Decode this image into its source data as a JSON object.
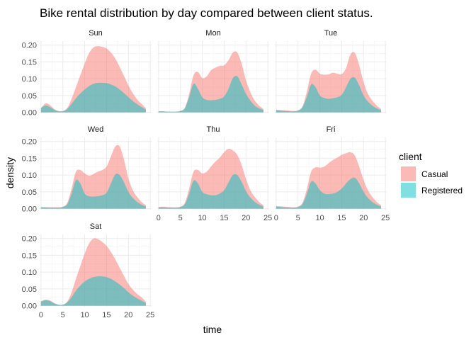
{
  "chart_data": {
    "type": "area",
    "title": "Bike rental distribution by day compared between client status.",
    "xlabel": "time",
    "ylabel": "density",
    "xlim": [
      0,
      24
    ],
    "ylim": [
      0,
      0.21
    ],
    "x_ticks": [
      "0",
      "5",
      "10",
      "15",
      "20",
      "25"
    ],
    "y_ticks": [
      "0.00",
      "0.05",
      "0.10",
      "0.15",
      "0.20"
    ],
    "legend": {
      "title": "client",
      "placement": "right",
      "entries": [
        {
          "name": "Casual",
          "color": "#F8766D"
        },
        {
          "name": "Registered",
          "color": "#00BFC4"
        }
      ]
    },
    "x": [
      0,
      1,
      2,
      3,
      4,
      5,
      6,
      7,
      8,
      9,
      10,
      11,
      12,
      13,
      14,
      15,
      16,
      17,
      18,
      19,
      20,
      21,
      22,
      23,
      24
    ],
    "panels": [
      {
        "label": "Sun",
        "series": [
          {
            "name": "Casual",
            "values": [
              0.013,
              0.026,
              0.022,
              0.01,
              0.004,
              0.004,
              0.013,
              0.04,
              0.075,
              0.11,
              0.145,
              0.176,
              0.193,
              0.197,
              0.195,
              0.19,
              0.178,
              0.16,
              0.135,
              0.108,
              0.08,
              0.057,
              0.038,
              0.025,
              0.012
            ]
          },
          {
            "name": "Registered",
            "values": [
              0.013,
              0.02,
              0.016,
              0.008,
              0.003,
              0.003,
              0.01,
              0.025,
              0.042,
              0.056,
              0.068,
              0.078,
              0.085,
              0.088,
              0.088,
              0.087,
              0.083,
              0.077,
              0.068,
              0.057,
              0.045,
              0.034,
              0.024,
              0.016,
              0.008
            ]
          }
        ]
      },
      {
        "label": "Mon",
        "series": [
          {
            "name": "Casual",
            "values": [
              0.003,
              0.003,
              0.002,
              0.002,
              0.002,
              0.004,
              0.013,
              0.055,
              0.11,
              0.12,
              0.102,
              0.107,
              0.125,
              0.133,
              0.138,
              0.14,
              0.155,
              0.178,
              0.178,
              0.145,
              0.095,
              0.06,
              0.035,
              0.02,
              0.01
            ]
          },
          {
            "name": "Registered",
            "values": [
              0.003,
              0.003,
              0.002,
              0.002,
              0.002,
              0.004,
              0.012,
              0.045,
              0.085,
              0.07,
              0.045,
              0.037,
              0.036,
              0.037,
              0.04,
              0.047,
              0.07,
              0.102,
              0.107,
              0.083,
              0.055,
              0.035,
              0.02,
              0.012,
              0.007
            ]
          }
        ]
      },
      {
        "label": "Tue",
        "series": [
          {
            "name": "Casual",
            "values": [
              0.008,
              0.007,
              0.006,
              0.005,
              0.004,
              0.006,
              0.017,
              0.06,
              0.115,
              0.127,
              0.115,
              0.112,
              0.113,
              0.118,
              0.115,
              0.114,
              0.132,
              0.172,
              0.177,
              0.14,
              0.09,
              0.055,
              0.035,
              0.02,
              0.01
            ]
          },
          {
            "name": "Registered",
            "values": [
              0.006,
              0.005,
              0.004,
              0.003,
              0.003,
              0.005,
              0.015,
              0.045,
              0.083,
              0.075,
              0.05,
              0.043,
              0.04,
              0.042,
              0.045,
              0.052,
              0.075,
              0.1,
              0.103,
              0.08,
              0.05,
              0.032,
              0.02,
              0.012,
              0.006
            ]
          }
        ]
      },
      {
        "label": "Wed",
        "series": [
          {
            "name": "Casual",
            "values": [
              0.005,
              0.004,
              0.004,
              0.004,
              0.004,
              0.006,
              0.017,
              0.06,
              0.11,
              0.115,
              0.105,
              0.098,
              0.103,
              0.11,
              0.115,
              0.125,
              0.155,
              0.185,
              0.185,
              0.145,
              0.09,
              0.055,
              0.035,
              0.02,
              0.01
            ]
          },
          {
            "name": "Registered",
            "values": [
              0.004,
              0.004,
              0.003,
              0.003,
              0.003,
              0.005,
              0.013,
              0.045,
              0.085,
              0.075,
              0.045,
              0.037,
              0.036,
              0.037,
              0.04,
              0.047,
              0.075,
              0.102,
              0.1,
              0.078,
              0.05,
              0.032,
              0.02,
              0.012,
              0.006
            ]
          }
        ]
      },
      {
        "label": "Thu",
        "series": [
          {
            "name": "Casual",
            "values": [
              0.005,
              0.006,
              0.005,
              0.004,
              0.004,
              0.006,
              0.017,
              0.06,
              0.11,
              0.115,
              0.105,
              0.11,
              0.125,
              0.14,
              0.152,
              0.168,
              0.178,
              0.173,
              0.16,
              0.13,
              0.088,
              0.055,
              0.035,
              0.02,
              0.01
            ]
          },
          {
            "name": "Registered",
            "values": [
              0.004,
              0.004,
              0.003,
              0.003,
              0.003,
              0.005,
              0.013,
              0.045,
              0.083,
              0.075,
              0.05,
              0.043,
              0.04,
              0.04,
              0.045,
              0.055,
              0.078,
              0.1,
              0.1,
              0.08,
              0.052,
              0.033,
              0.02,
              0.012,
              0.006
            ]
          }
        ]
      },
      {
        "label": "Fri",
        "series": [
          {
            "name": "Casual",
            "values": [
              0.008,
              0.007,
              0.006,
              0.005,
              0.004,
              0.006,
              0.017,
              0.057,
              0.11,
              0.123,
              0.122,
              0.125,
              0.135,
              0.145,
              0.152,
              0.16,
              0.165,
              0.168,
              0.158,
              0.125,
              0.085,
              0.055,
              0.035,
              0.02,
              0.01
            ]
          },
          {
            "name": "Registered",
            "values": [
              0.006,
              0.005,
              0.004,
              0.003,
              0.003,
              0.005,
              0.013,
              0.043,
              0.08,
              0.075,
              0.055,
              0.045,
              0.043,
              0.045,
              0.05,
              0.06,
              0.075,
              0.088,
              0.092,
              0.075,
              0.05,
              0.032,
              0.02,
              0.012,
              0.006
            ]
          }
        ]
      },
      {
        "label": "Sat",
        "series": [
          {
            "name": "Casual",
            "values": [
              0.013,
              0.018,
              0.016,
              0.008,
              0.003,
              0.003,
              0.012,
              0.04,
              0.08,
              0.118,
              0.155,
              0.185,
              0.2,
              0.198,
              0.19,
              0.178,
              0.16,
              0.138,
              0.113,
              0.088,
              0.065,
              0.048,
              0.035,
              0.025,
              0.012
            ]
          },
          {
            "name": "Registered",
            "values": [
              0.012,
              0.016,
              0.014,
              0.007,
              0.003,
              0.003,
              0.01,
              0.025,
              0.045,
              0.06,
              0.072,
              0.08,
              0.085,
              0.087,
              0.087,
              0.085,
              0.08,
              0.072,
              0.063,
              0.052,
              0.04,
              0.03,
              0.022,
              0.015,
              0.008
            ]
          }
        ]
      }
    ]
  }
}
